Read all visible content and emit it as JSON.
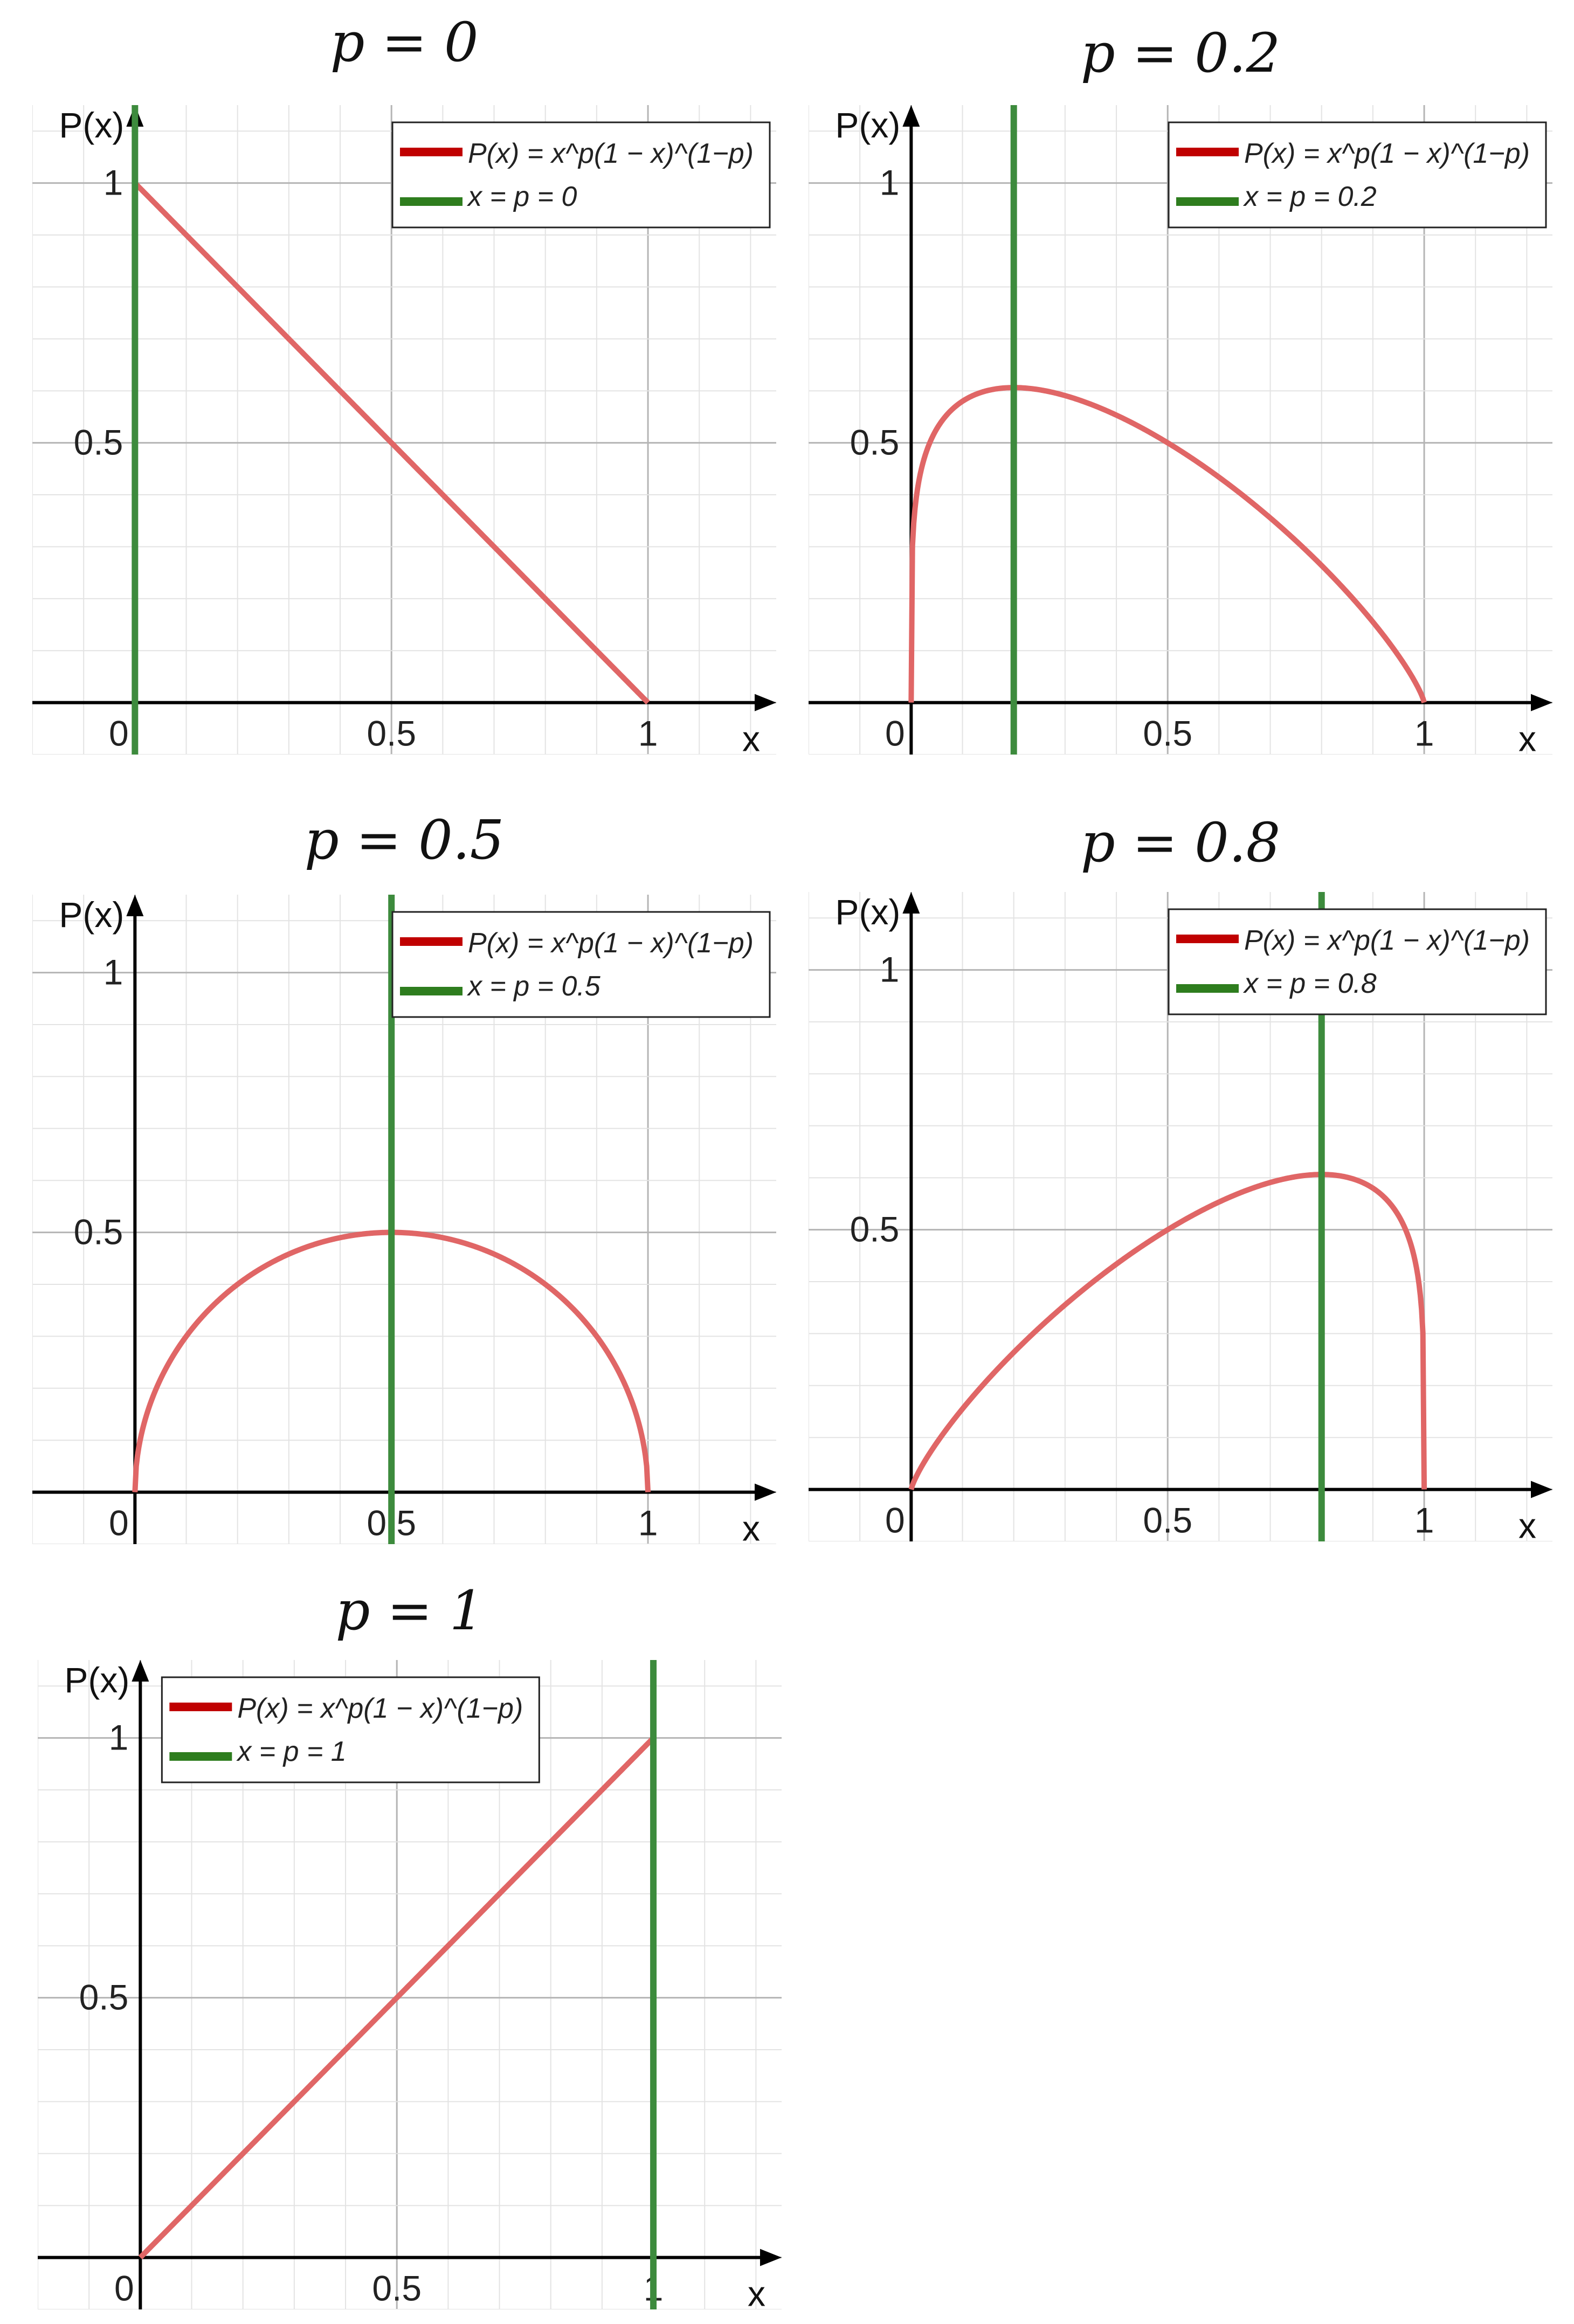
{
  "chart_data": [
    {
      "type": "line",
      "title": "p = 0",
      "p": 0,
      "xlabel": "x",
      "ylabel": "P(x)",
      "xlim": [
        -0.2,
        1.25
      ],
      "ylim": [
        -0.1,
        1.15
      ],
      "xticks": [
        "0",
        "0.5",
        "1"
      ],
      "yticks": [
        "0.5",
        "1"
      ],
      "grid": true,
      "legend": {
        "placement": "top-right",
        "entries": [
          "P(x) = x^p(1 − x)^(1−p)",
          "x = p = 0"
        ]
      },
      "series": [
        {
          "formula": "x^p(1-x)^(1-p)",
          "color": "#e06666",
          "x": [
            0,
            0.5,
            1
          ],
          "y": [
            1,
            0.5,
            0
          ]
        },
        {
          "formula": "x = p",
          "color": "#3d8b3d",
          "x": [
            0,
            0
          ],
          "y": [
            -0.1,
            1.15
          ]
        }
      ]
    },
    {
      "type": "line",
      "title": "p = 0.2",
      "p": 0.2,
      "xlabel": "x",
      "ylabel": "P(x)",
      "xlim": [
        -0.2,
        1.25
      ],
      "ylim": [
        -0.1,
        1.15
      ],
      "xticks": [
        "0",
        "0.5",
        "1"
      ],
      "yticks": [
        "0.5",
        "1"
      ],
      "grid": true,
      "legend": {
        "placement": "top-right",
        "entries": [
          "P(x) = x^p(1 − x)^(1−p)",
          "x = p = 0.2"
        ]
      },
      "series": [
        {
          "formula": "x^p(1-x)^(1-p)",
          "color": "#e06666",
          "x": [
            0,
            0.2,
            0.5,
            1
          ],
          "y": [
            0,
            0.61,
            0.5,
            0
          ]
        },
        {
          "formula": "x = p",
          "color": "#3d8b3d",
          "x": [
            0.2,
            0.2
          ],
          "y": [
            -0.1,
            1.15
          ]
        }
      ]
    },
    {
      "type": "line",
      "title": "p = 0.5",
      "p": 0.5,
      "xlabel": "x",
      "ylabel": "P(x)",
      "xlim": [
        -0.2,
        1.25
      ],
      "ylim": [
        -0.1,
        1.15
      ],
      "xticks": [
        "0",
        "0.5",
        "1"
      ],
      "yticks": [
        "0.5",
        "1"
      ],
      "grid": true,
      "legend": {
        "placement": "top-right",
        "entries": [
          "P(x) = x^p(1 − x)^(1−p)",
          "x = p = 0.5"
        ]
      },
      "series": [
        {
          "formula": "x^p(1-x)^(1-p)",
          "color": "#e06666",
          "x": [
            0,
            0.5,
            1
          ],
          "y": [
            0,
            0.5,
            0
          ]
        },
        {
          "formula": "x = p",
          "color": "#3d8b3d",
          "x": [
            0.5,
            0.5
          ],
          "y": [
            -0.1,
            1.15
          ]
        }
      ]
    },
    {
      "type": "line",
      "title": "p = 0.8",
      "p": 0.8,
      "xlabel": "x",
      "ylabel": "P(x)",
      "xlim": [
        -0.2,
        1.25
      ],
      "ylim": [
        -0.1,
        1.15
      ],
      "xticks": [
        "0",
        "0.5",
        "1"
      ],
      "yticks": [
        "0.5",
        "1"
      ],
      "grid": true,
      "legend": {
        "placement": "top-right",
        "entries": [
          "P(x) = x^p(1 − x)^(1−p)",
          "x = p = 0.8"
        ]
      },
      "series": [
        {
          "formula": "x^p(1-x)^(1-p)",
          "color": "#e06666",
          "x": [
            0,
            0.5,
            0.8,
            1
          ],
          "y": [
            0,
            0.5,
            0.61,
            0
          ]
        },
        {
          "formula": "x = p",
          "color": "#3d8b3d",
          "x": [
            0.8,
            0.8
          ],
          "y": [
            -0.1,
            1.15
          ]
        }
      ]
    },
    {
      "type": "line",
      "title": "p = 1",
      "p": 1,
      "xlabel": "x",
      "ylabel": "P(x)",
      "xlim": [
        -0.2,
        1.25
      ],
      "ylim": [
        -0.1,
        1.15
      ],
      "xticks": [
        "0",
        "0.5",
        "1"
      ],
      "yticks": [
        "0.5",
        "1"
      ],
      "grid": true,
      "legend": {
        "placement": "top-left",
        "entries": [
          "P(x) = x^p(1 − x)^(1−p)",
          "x = p = 1"
        ]
      },
      "series": [
        {
          "formula": "x^p(1-x)^(1-p)",
          "color": "#e06666",
          "x": [
            0,
            0.5,
            1
          ],
          "y": [
            0,
            0.5,
            1
          ]
        },
        {
          "formula": "x = p",
          "color": "#3d8b3d",
          "x": [
            1,
            1
          ],
          "y": [
            -0.1,
            1.15
          ]
        }
      ]
    }
  ],
  "colors": {
    "curve": "#e06666",
    "vline": "#3d8b3d",
    "legend_curve": "#c00000",
    "legend_vline": "#2e7d1e",
    "grid_minor": "#e3e3e3",
    "grid_major": "#b5b5b5",
    "axis": "#000000"
  }
}
